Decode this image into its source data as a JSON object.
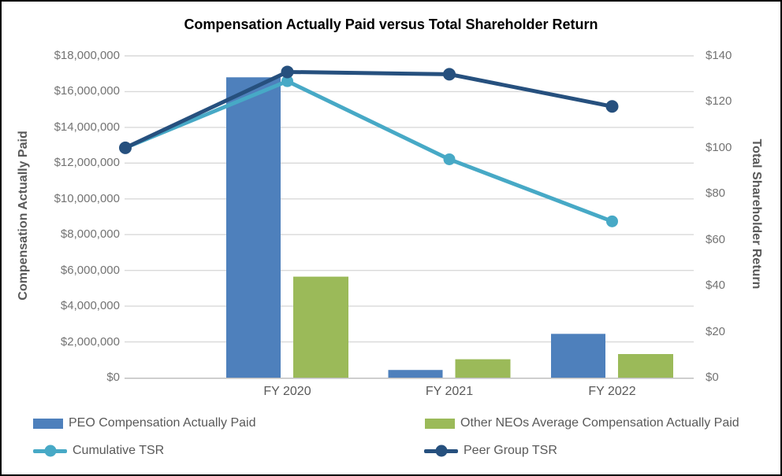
{
  "title": "Compensation Actually Paid versus Total Shareholder Return",
  "colors": {
    "peo_bar": "#4E80BC",
    "neo_bar": "#9BBA59",
    "cumulative_tsr": "#47A9C6",
    "peer_tsr": "#26507E",
    "gridline": "#D9D9D9",
    "axis_line": "#BFBFBF",
    "tick_text": "#737373",
    "axis_title_text": "#595959",
    "legend_text": "#595959",
    "title_text": "#000000",
    "background": "#FFFFFF"
  },
  "left_axis": {
    "title": "Compensation Actually Paid",
    "tick_labels": [
      "$0",
      "$2,000,000",
      "$4,000,000",
      "$6,000,000",
      "$8,000,000",
      "$10,000,000",
      "$12,000,000",
      "$14,000,000",
      "$16,000,000",
      "$18,000,000"
    ],
    "min": 0,
    "max": 18000000,
    "step": 2000000
  },
  "right_axis": {
    "title": "Total Shareholder Return",
    "tick_labels": [
      "$0",
      "$20",
      "$40",
      "$60",
      "$80",
      "$100",
      "$120",
      "$140"
    ],
    "min": 0,
    "max": 140,
    "step": 20
  },
  "x_axis": {
    "categories": [
      "FY 2020",
      "FY 2021",
      "FY 2022"
    ]
  },
  "legend": {
    "items": [
      {
        "label": "PEO Compensation Actually Paid",
        "marker": "bar",
        "color_key": "peo_bar"
      },
      {
        "label": "Other NEOs Average Compensation Actually Paid",
        "marker": "bar",
        "color_key": "neo_bar"
      },
      {
        "label": "Cumulative TSR",
        "marker": "line",
        "color_key": "cumulative_tsr"
      },
      {
        "label": "Peer Group TSR",
        "marker": "line",
        "color_key": "peer_tsr"
      }
    ]
  },
  "chart_data": {
    "type": "combo",
    "categories": [
      "FY 2020",
      "FY 2021",
      "FY 2022"
    ],
    "bar_series": [
      {
        "name": "PEO Compensation Actually Paid",
        "axis": "left",
        "color_key": "peo_bar",
        "values": [
          16800000,
          430000,
          2450000
        ]
      },
      {
        "name": "Other NEOs Average Compensation Actually Paid",
        "axis": "left",
        "color_key": "neo_bar",
        "values": [
          5650000,
          1030000,
          1320000
        ]
      }
    ],
    "line_series": [
      {
        "name": "Cumulative TSR",
        "axis": "right",
        "color_key": "cumulative_tsr",
        "x_positions": [
          "axis-start",
          "FY 2020",
          "FY 2021",
          "FY 2022"
        ],
        "values": [
          100,
          129,
          95,
          68
        ]
      },
      {
        "name": "Peer Group TSR",
        "axis": "right",
        "color_key": "peer_tsr",
        "x_positions": [
          "axis-start",
          "FY 2020",
          "FY 2021",
          "FY 2022"
        ],
        "values": [
          100,
          133,
          132,
          118
        ]
      }
    ],
    "title": "Compensation Actually Paid versus Total Shareholder Return",
    "left_ylabel": "Compensation Actually Paid",
    "right_ylabel": "Total Shareholder Return",
    "left_ylim": [
      0,
      18000000
    ],
    "right_ylim": [
      0,
      140
    ],
    "grid": "horizontal",
    "legend_position": "bottom"
  }
}
